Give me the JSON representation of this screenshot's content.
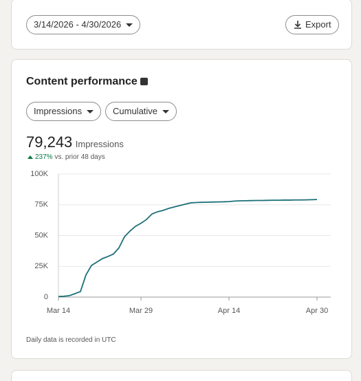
{
  "toolbar": {
    "date_range": "3/14/2026 - 4/30/2026",
    "export": "Export"
  },
  "card": {
    "title": "Content performance",
    "metric_dropdown": "Impressions",
    "mode_dropdown": "Cumulative",
    "total": "79,243",
    "total_label": "Impressions",
    "change": "237%",
    "change_label": "vs. prior 48 days",
    "footnote": "Daily data is recorded in UTC"
  },
  "chart_data": {
    "type": "line",
    "categories": [
      "Mar 14",
      null,
      null,
      null,
      null,
      null,
      null,
      null,
      null,
      null,
      null,
      null,
      null,
      null,
      null,
      "Mar 29",
      null,
      null,
      null,
      null,
      null,
      null,
      null,
      null,
      null,
      null,
      null,
      null,
      null,
      null,
      null,
      "Apr 14",
      null,
      null,
      null,
      null,
      null,
      null,
      null,
      null,
      null,
      null,
      null,
      null,
      null,
      null,
      null,
      "Apr 30"
    ],
    "series": [
      {
        "name": "Impressions",
        "color": "#1c6f78",
        "values": [
          500,
          700,
          1200,
          2800,
          4500,
          18000,
          25700,
          28500,
          31300,
          33000,
          35000,
          40000,
          49000,
          53600,
          57500,
          60000,
          63000,
          67500,
          69300,
          70400,
          72000,
          73200,
          74300,
          75400,
          76500,
          76800,
          77000,
          77100,
          77200,
          77300,
          77400,
          77600,
          78000,
          78200,
          78300,
          78400,
          78500,
          78500,
          78600,
          78700,
          78700,
          78800,
          78800,
          78900,
          78900,
          79000,
          79100,
          79243
        ]
      }
    ],
    "ylim": [
      0,
      100000
    ],
    "yticks": [
      0,
      {
        "value": 25000,
        "label": "25K"
      },
      {
        "value": 50000,
        "label": "50K"
      },
      {
        "value": 75000,
        "label": "75K"
      },
      {
        "value": 100000,
        "label": "100K"
      }
    ],
    "grid": true
  }
}
